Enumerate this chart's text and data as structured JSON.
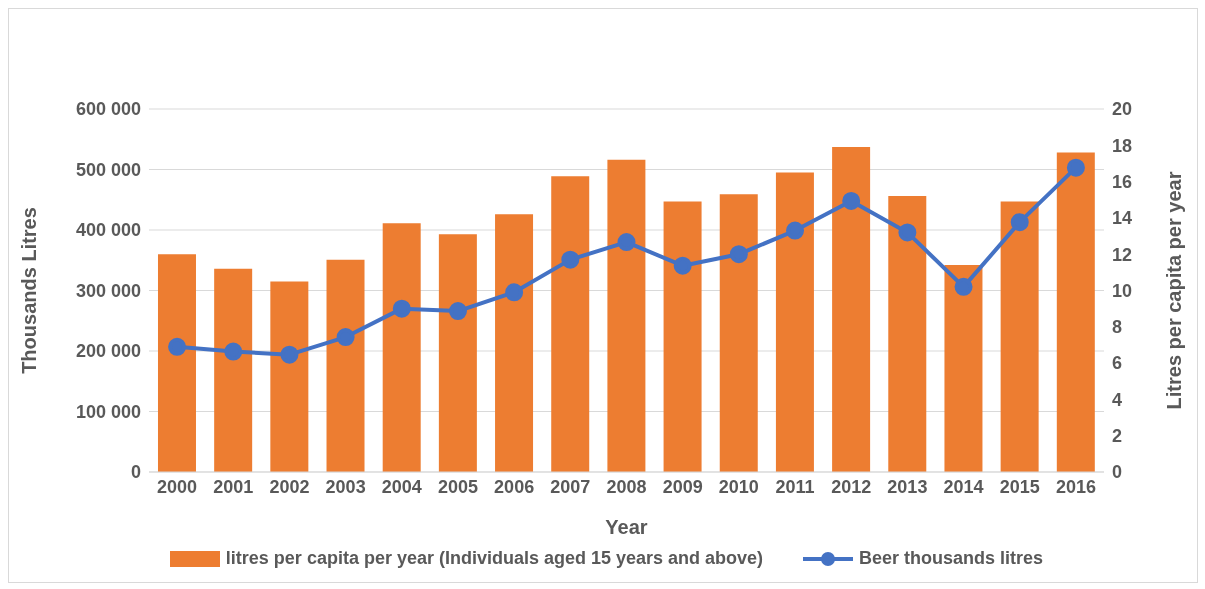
{
  "chart_data": {
    "type": "bar",
    "xlabel": "Year",
    "ylabel": "Thousands Litres",
    "y2label": "Litres per capita per year",
    "categories": [
      "2000",
      "2001",
      "2002",
      "2003",
      "2004",
      "2005",
      "2006",
      "2007",
      "2008",
      "2009",
      "2010",
      "2011",
      "2012",
      "2013",
      "2014",
      "2015",
      "2016"
    ],
    "series": [
      {
        "name": "litres per capita per year (Individuals aged 15 years and above)",
        "axis": "y2",
        "color": "#ed7d31",
        "values": [
          12.0,
          11.2,
          10.5,
          11.7,
          13.7,
          13.1,
          14.2,
          16.3,
          17.2,
          14.9,
          15.3,
          16.5,
          17.9,
          15.2,
          11.4,
          14.9,
          17.6
        ]
      },
      {
        "name": "Beer thousands litres",
        "type": "line",
        "axis": "y",
        "color": "#4472c4",
        "values": [
          207000,
          199000,
          194000,
          223000,
          270000,
          266000,
          297000,
          351000,
          380000,
          341000,
          360000,
          399000,
          448000,
          396000,
          306000,
          413000,
          503000
        ]
      }
    ],
    "ylim": [
      0,
      600000
    ],
    "yticks": [
      0,
      {
        "value": 100000,
        "label": "100 000"
      },
      {
        "value": 200000,
        "label": "200 000"
      },
      {
        "value": 300000,
        "label": "300 000"
      },
      {
        "value": 400000,
        "label": "400 000"
      },
      {
        "value": 500000,
        "label": "500 000"
      },
      {
        "value": 600000,
        "label": "600 000"
      }
    ],
    "y2lim": [
      0,
      20
    ],
    "y2ticks": [
      0,
      2,
      4,
      6,
      8,
      10,
      12,
      14,
      16,
      18,
      20
    ],
    "grid": "y",
    "legend": "bottom",
    "marker": "circle",
    "line_style": "solid"
  }
}
